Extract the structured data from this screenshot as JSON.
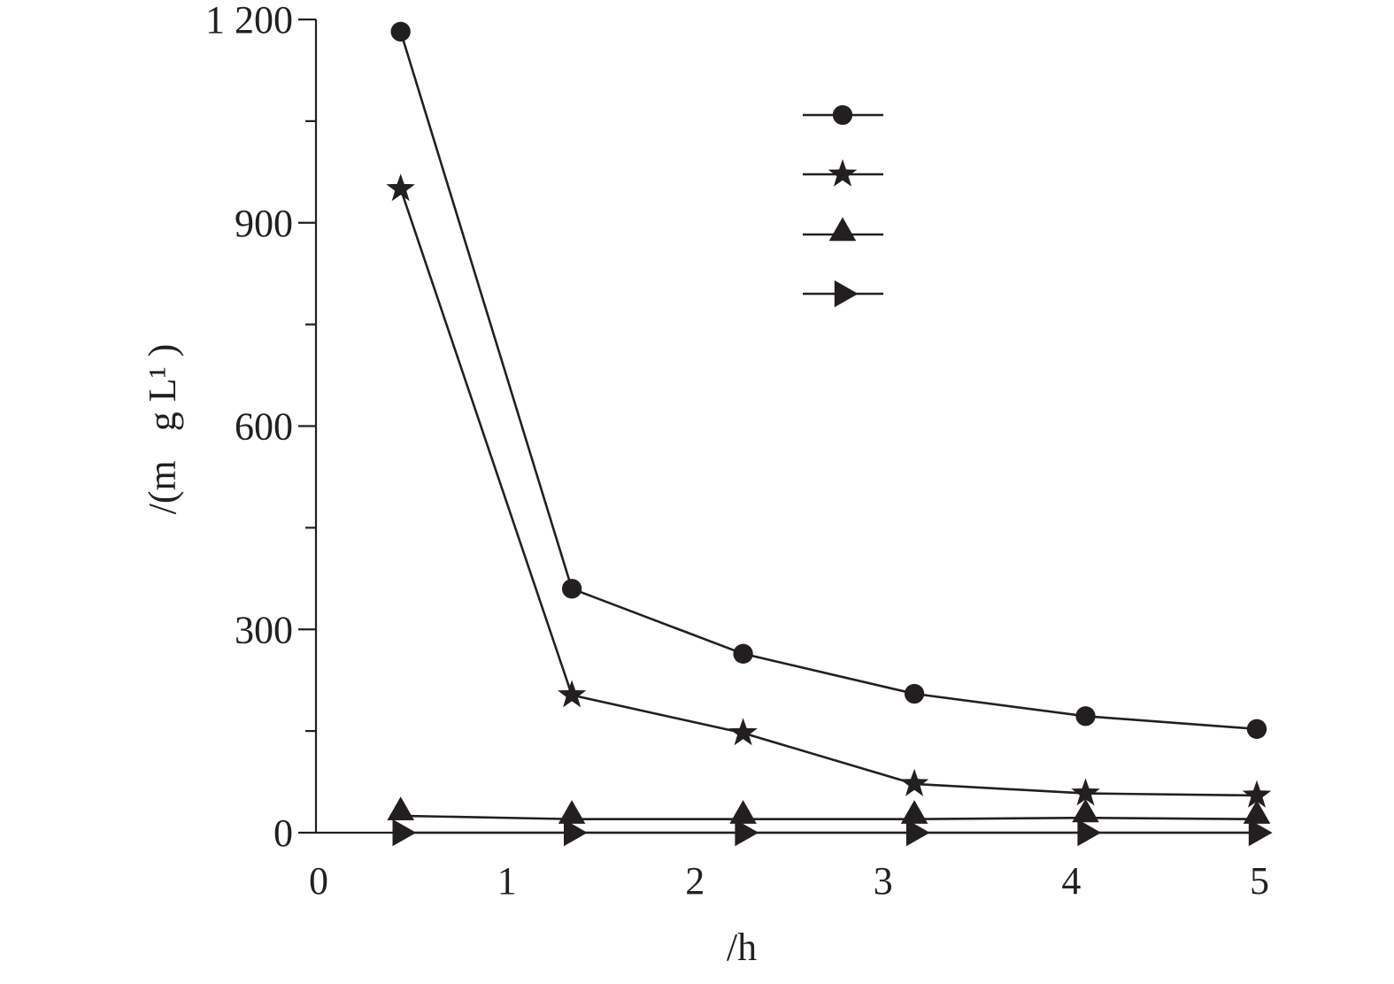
{
  "chart_data": {
    "type": "line",
    "title": "",
    "xlabel": "/h",
    "ylabel": "/(m   g L¹ )",
    "xlim": [
      0,
      5
    ],
    "ylim": [
      0,
      1200
    ],
    "x_ticks": [
      "0",
      "1",
      "2",
      "3",
      "4",
      "5"
    ],
    "y_ticks": [
      "0",
      "300",
      "600",
      "900",
      "1 200"
    ],
    "grid": false,
    "legend_position": "top-right",
    "x": [
      0.45,
      1.36,
      2.27,
      3.18,
      4.09,
      5.0
    ],
    "series": [
      {
        "marker": "circle",
        "values": [
          1182,
          360,
          264,
          205,
          172,
          153
        ]
      },
      {
        "marker": "star",
        "values": [
          950,
          203,
          147,
          72,
          58,
          55
        ]
      },
      {
        "marker": "triangle-up",
        "values": [
          25,
          20,
          20,
          20,
          22,
          20
        ]
      },
      {
        "marker": "triangle-right",
        "values": [
          0,
          0,
          0,
          0,
          0,
          0
        ]
      }
    ]
  }
}
